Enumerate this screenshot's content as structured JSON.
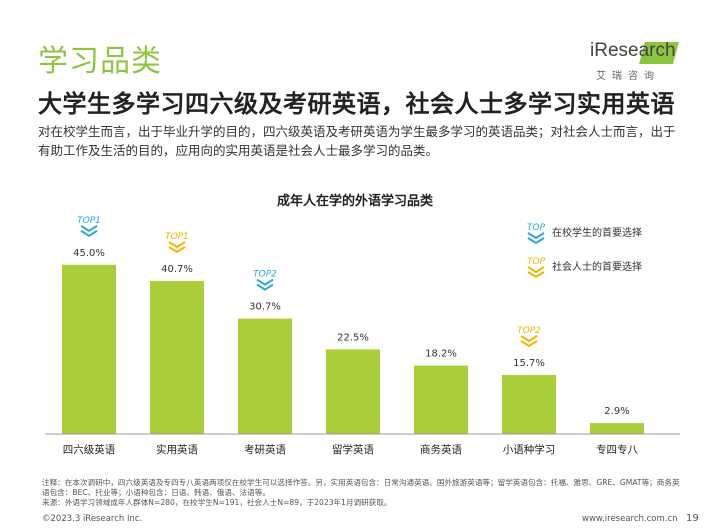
{
  "page": {
    "section_title": "学习品类",
    "headline": "大学生多学习四六级及考研英语，社会人士多学习实用英语",
    "description": "对在校学生而言，出于毕业升学的目的，四六级英语及考研英语为学生最多学习的英语品类；对社会人士而言，出于有助工作及生活的目的，应用向的实用英语是社会人士最多学习的品类。",
    "logo_text": "iResearch",
    "logo_sub": "艾瑞咨询",
    "notes_line1": "注释：在本次调研中，四六级英语及专四专八英语两项仅在校学生可以选择作答。另，实用英语包含：日常沟通英语、国外旅游英语等；留学英语包含：托福、雅思、GRE、GMAT等；商务英语包含：BEC、托业等；小语种包含：日语、韩语、俄语、法语等。",
    "notes_line2": "来源：外语学习领域成年人群体N=280，在校学生N=191，社会人士N=89，于2023年1月调研获取。",
    "copyright": "©2023.3 iResearch Inc.",
    "website": "www.iresearch.com.cn",
    "page_number": "19"
  },
  "chart_data": {
    "type": "bar",
    "title": "成年人在学的外语学习品类",
    "categories": [
      "四六级英语",
      "实用英语",
      "考研英语",
      "留学英语",
      "商务英语",
      "小语种学习",
      "专四专八"
    ],
    "values": [
      45.0,
      40.7,
      30.7,
      22.5,
      18.2,
      15.7,
      2.9
    ],
    "value_labels": [
      "45.0%",
      "40.7%",
      "30.7%",
      "22.5%",
      "18.2%",
      "15.7%",
      "2.9%"
    ],
    "unit": "%",
    "ylim": [
      0,
      50
    ],
    "grid": false,
    "bar_color": "#a8cf3a",
    "badges": [
      {
        "category_index": 0,
        "text": "TOP1",
        "group": "student"
      },
      {
        "category_index": 1,
        "text": "TOP1",
        "group": "social"
      },
      {
        "category_index": 2,
        "text": "TOP2",
        "group": "student"
      },
      {
        "category_index": 5,
        "text": "TOP2",
        "group": "social"
      }
    ],
    "legend": {
      "position": "top-right",
      "items": [
        {
          "group": "student",
          "badge": "TOP",
          "label": "在校学生的首要选择",
          "color": "#2aa6d8"
        },
        {
          "group": "social",
          "badge": "TOP",
          "label": "社会人士的首要选择",
          "color": "#f5b400"
        }
      ]
    }
  }
}
